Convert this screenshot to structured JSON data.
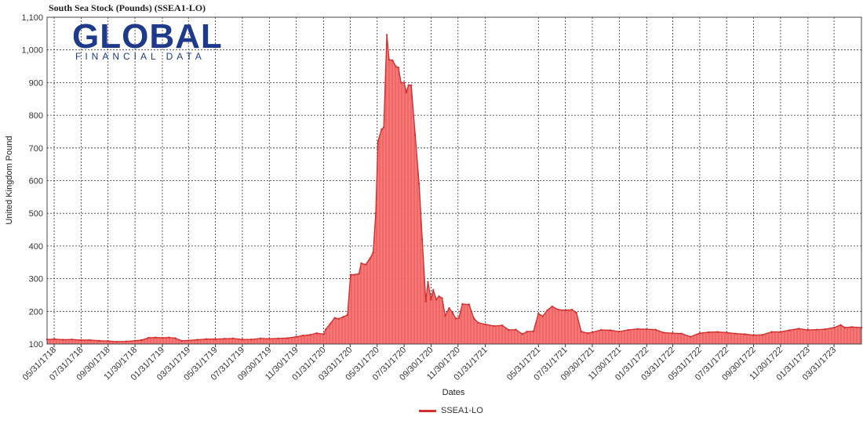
{
  "chart_data": {
    "type": "area",
    "title": "South Sea Stock (Pounds) (SSEA1-LO)",
    "xlabel": "Dates",
    "ylabel": "United Kingdom Pound",
    "ylim": [
      100,
      1100
    ],
    "yticks": [
      100,
      200,
      300,
      400,
      500,
      600,
      700,
      800,
      900,
      1000,
      1100
    ],
    "ytick_labels": [
      "100",
      "200",
      "300",
      "400",
      "500",
      "600",
      "700",
      "800",
      "900",
      "1,000",
      "1,100"
    ],
    "xlim": [
      "1718-05-15",
      "1723-06-01"
    ],
    "xticks": [
      "1718-05-31",
      "1718-07-31",
      "1718-09-30",
      "1718-11-30",
      "1719-01-31",
      "1719-03-31",
      "1719-05-31",
      "1719-07-31",
      "1719-09-30",
      "1719-11-30",
      "1720-01-31",
      "1720-03-31",
      "1720-05-31",
      "1720-07-31",
      "1720-09-30",
      "1720-11-30",
      "1721-01-31",
      "1721-05-31",
      "1721-07-31",
      "1721-09-30",
      "1721-11-30",
      "1722-01-31",
      "1722-03-31",
      "1722-05-31",
      "1722-07-31",
      "1722-09-30",
      "1722-11-30",
      "1723-01-31",
      "1723-03-31"
    ],
    "xtick_labels": [
      "05/31/1718",
      "07/31/1718",
      "09/30/1718",
      "11/30/1718",
      "01/31/1719",
      "03/31/1719",
      "05/31/1719",
      "07/31/1719",
      "09/30/1719",
      "11/30/1719",
      "01/31/1720",
      "03/31/1720",
      "05/31/1720",
      "07/31/1720",
      "09/30/1720",
      "11/30/1720",
      "01/31/1721",
      "05/31/1721",
      "07/31/1721",
      "09/30/1721",
      "11/30/1721",
      "01/31/1722",
      "03/31/1722",
      "05/31/1722",
      "07/31/1722",
      "09/30/1722",
      "11/30/1722",
      "01/31/1723",
      "03/31/1723"
    ],
    "grid": true,
    "legend_position": "bottom",
    "series": [
      {
        "name": "SSEA1-LO",
        "color": "#d32f2f",
        "fill": "#f87171",
        "points": [
          [
            "1718-05-15",
            114
          ],
          [
            "1718-06-01",
            115
          ],
          [
            "1718-06-20",
            113
          ],
          [
            "1718-07-10",
            114
          ],
          [
            "1718-07-31",
            112
          ],
          [
            "1718-08-20",
            112
          ],
          [
            "1718-09-10",
            110
          ],
          [
            "1718-09-30",
            109
          ],
          [
            "1718-10-20",
            107
          ],
          [
            "1718-11-10",
            108
          ],
          [
            "1718-11-30",
            110
          ],
          [
            "1718-12-15",
            112
          ],
          [
            "1718-12-31",
            119
          ],
          [
            "1719-01-15",
            120
          ],
          [
            "1719-01-31",
            119
          ],
          [
            "1719-02-15",
            120
          ],
          [
            "1719-03-01",
            118
          ],
          [
            "1719-03-15",
            110
          ],
          [
            "1719-03-31",
            111
          ],
          [
            "1719-04-20",
            113
          ],
          [
            "1719-05-10",
            115
          ],
          [
            "1719-05-31",
            115
          ],
          [
            "1719-06-20",
            116
          ],
          [
            "1719-07-10",
            117
          ],
          [
            "1719-07-31",
            114
          ],
          [
            "1719-08-20",
            114
          ],
          [
            "1719-09-10",
            117
          ],
          [
            "1719-09-30",
            116
          ],
          [
            "1719-10-20",
            117
          ],
          [
            "1719-11-10",
            118
          ],
          [
            "1719-11-30",
            122
          ],
          [
            "1719-12-15",
            126
          ],
          [
            "1719-12-31",
            128
          ],
          [
            "1720-01-15",
            133
          ],
          [
            "1720-01-31",
            130
          ],
          [
            "1720-02-05",
            145
          ],
          [
            "1720-02-15",
            162
          ],
          [
            "1720-02-25",
            180
          ],
          [
            "1720-03-05",
            177
          ],
          [
            "1720-03-15",
            183
          ],
          [
            "1720-03-25",
            189
          ],
          [
            "1720-04-01",
            312
          ],
          [
            "1720-04-10",
            312
          ],
          [
            "1720-04-20",
            315
          ],
          [
            "1720-04-25",
            347
          ],
          [
            "1720-05-05",
            343
          ],
          [
            "1720-05-15",
            362
          ],
          [
            "1720-05-22",
            380
          ],
          [
            "1720-05-28",
            500
          ],
          [
            "1720-06-02",
            720
          ],
          [
            "1720-06-10",
            757
          ],
          [
            "1720-06-15",
            763
          ],
          [
            "1720-06-22",
            1046
          ],
          [
            "1720-06-27",
            970
          ],
          [
            "1720-07-05",
            968
          ],
          [
            "1720-07-12",
            950
          ],
          [
            "1720-07-18",
            946
          ],
          [
            "1720-07-24",
            900
          ],
          [
            "1720-07-31",
            900
          ],
          [
            "1720-08-05",
            870
          ],
          [
            "1720-08-10",
            892
          ],
          [
            "1720-08-16",
            892
          ],
          [
            "1720-08-25",
            740
          ],
          [
            "1720-09-03",
            590
          ],
          [
            "1720-09-10",
            420
          ],
          [
            "1720-09-18",
            230
          ],
          [
            "1720-09-23",
            290
          ],
          [
            "1720-09-30",
            236
          ],
          [
            "1720-10-05",
            265
          ],
          [
            "1720-10-12",
            236
          ],
          [
            "1720-10-18",
            246
          ],
          [
            "1720-10-25",
            240
          ],
          [
            "1720-11-01",
            186
          ],
          [
            "1720-11-10",
            210
          ],
          [
            "1720-11-18",
            195
          ],
          [
            "1720-11-25",
            178
          ],
          [
            "1720-12-02",
            180
          ],
          [
            "1720-12-10",
            222
          ],
          [
            "1720-12-25",
            221
          ],
          [
            "1721-01-05",
            178
          ],
          [
            "1721-01-15",
            165
          ],
          [
            "1721-01-31",
            160
          ],
          [
            "1721-02-20",
            155
          ],
          [
            "1721-03-10",
            157
          ],
          [
            "1721-03-25",
            143
          ],
          [
            "1721-04-10",
            144
          ],
          [
            "1721-04-25",
            130
          ],
          [
            "1721-05-05",
            138
          ],
          [
            "1721-05-20",
            139
          ],
          [
            "1721-05-31",
            193
          ],
          [
            "1721-06-10",
            185
          ],
          [
            "1721-06-20",
            203
          ],
          [
            "1721-07-01",
            215
          ],
          [
            "1721-07-15",
            205
          ],
          [
            "1721-07-31",
            203
          ],
          [
            "1721-08-15",
            205
          ],
          [
            "1721-08-25",
            196
          ],
          [
            "1721-09-05",
            138
          ],
          [
            "1721-09-20",
            133
          ],
          [
            "1721-09-30",
            136
          ],
          [
            "1721-10-20",
            143
          ],
          [
            "1721-11-10",
            142
          ],
          [
            "1721-11-30",
            138
          ],
          [
            "1721-12-20",
            143
          ],
          [
            "1722-01-10",
            146
          ],
          [
            "1722-01-31",
            145
          ],
          [
            "1722-02-20",
            144
          ],
          [
            "1722-03-10",
            135
          ],
          [
            "1722-03-31",
            133
          ],
          [
            "1722-04-20",
            132
          ],
          [
            "1722-05-10",
            122
          ],
          [
            "1722-05-31",
            133
          ],
          [
            "1722-06-20",
            136
          ],
          [
            "1722-07-10",
            137
          ],
          [
            "1722-07-31",
            135
          ],
          [
            "1722-08-20",
            132
          ],
          [
            "1722-09-10",
            130
          ],
          [
            "1722-09-30",
            127
          ],
          [
            "1722-10-20",
            128
          ],
          [
            "1722-11-10",
            137
          ],
          [
            "1722-11-30",
            137
          ],
          [
            "1722-12-20",
            142
          ],
          [
            "1723-01-10",
            147
          ],
          [
            "1723-01-31",
            143
          ],
          [
            "1723-02-20",
            144
          ],
          [
            "1723-03-10",
            145
          ],
          [
            "1723-03-31",
            150
          ],
          [
            "1723-04-15",
            158
          ],
          [
            "1723-04-25",
            150
          ],
          [
            "1723-05-10",
            152
          ],
          [
            "1723-06-01",
            150
          ]
        ]
      }
    ]
  },
  "logo": {
    "main": "GLOBAL",
    "sub": "FINANCIAL DATA"
  },
  "legend": {
    "label": "SSEA1-LO"
  }
}
